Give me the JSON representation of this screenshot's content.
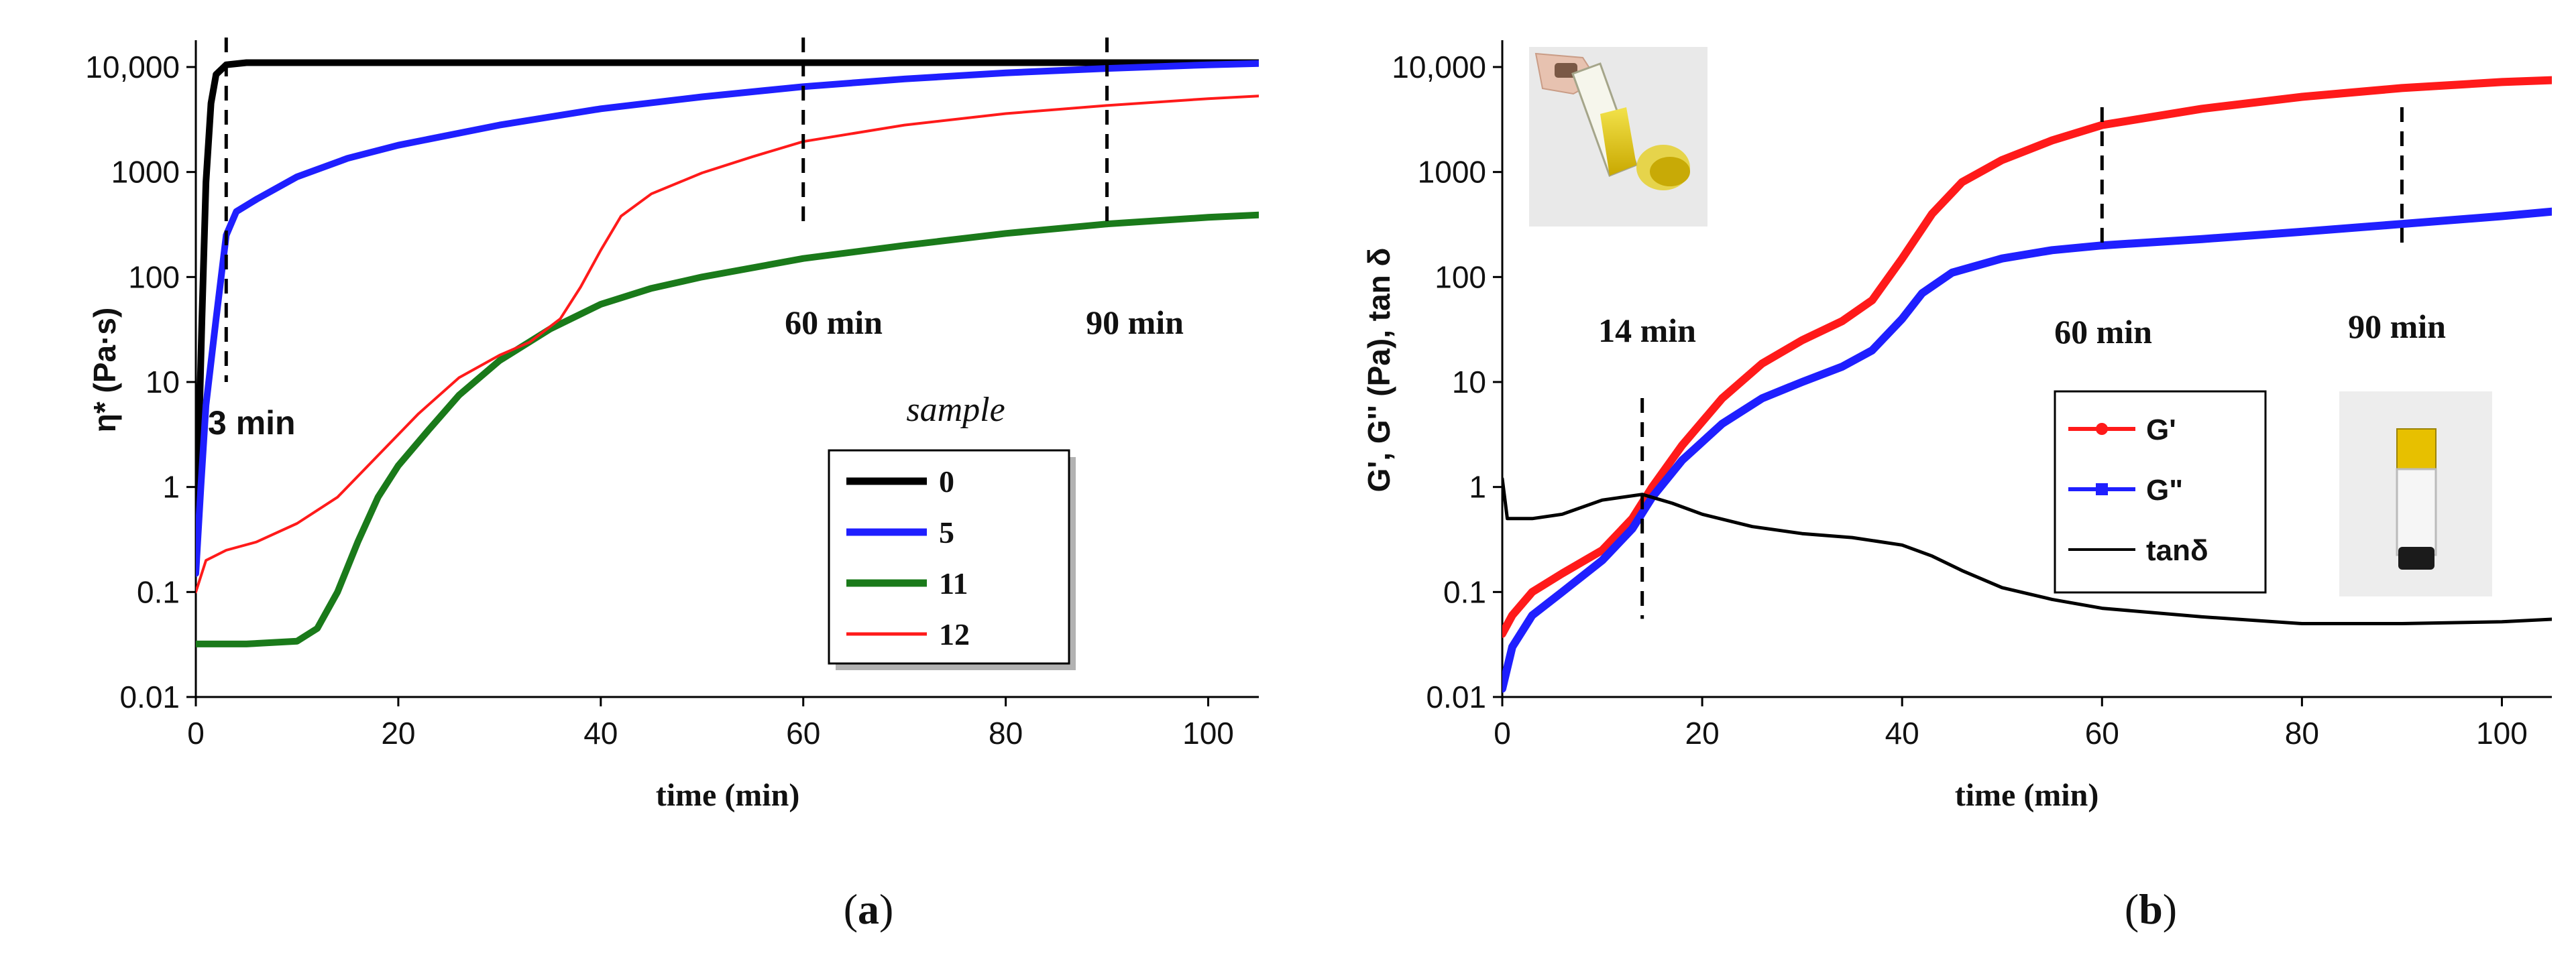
{
  "colors": {
    "black": "#000000",
    "blue": "#1f1fff",
    "green": "#1a7a1a",
    "red": "#ff1a1a"
  },
  "panel_labels": {
    "a_open": "(",
    "a_letter": "a",
    "a_close": ")",
    "b_open": "(",
    "b_letter": "b",
    "b_close": ")"
  },
  "images": {
    "inset_top": "photo of a glass vial with yellow liquid held in a hand",
    "inset_right": "photo of an upright glass vial with yellow cap and dark gel"
  },
  "chart_data": [
    {
      "id": "a",
      "type": "line",
      "xlabel": "time (min)",
      "ylabel": "η* (Pa·s)",
      "xlim": [
        0,
        105
      ],
      "ylim": [
        0.01,
        10000
      ],
      "yscale": "log",
      "x_ticks": [
        0,
        20,
        40,
        60,
        80,
        100
      ],
      "y_ticks": [
        0.01,
        0.1,
        1,
        10,
        100,
        1000,
        10000
      ],
      "y_tick_labels": [
        "0.01",
        "0.1",
        "1",
        "10",
        "100",
        "1000",
        "10,000"
      ],
      "x_tick_labels": [
        "0",
        "20",
        "40",
        "60",
        "80",
        "100"
      ],
      "legend_title": "sample",
      "vlines": [
        {
          "x": 3,
          "label": "3 min"
        },
        {
          "x": 60,
          "label": "60 min"
        },
        {
          "x": 90,
          "label": "90 min"
        }
      ],
      "series": [
        {
          "name": "0",
          "color": "#000000",
          "points": [
            [
              0,
              0.3
            ],
            [
              0.3,
              3
            ],
            [
              0.6,
              40
            ],
            [
              1,
              800
            ],
            [
              1.5,
              4500
            ],
            [
              2,
              8500
            ],
            [
              3,
              10500
            ],
            [
              5,
              11000
            ],
            [
              20,
              11000
            ],
            [
              50,
              11000
            ],
            [
              80,
              11000
            ],
            [
              105,
              11000
            ]
          ]
        },
        {
          "name": "5",
          "color": "#1f1fff",
          "points": [
            [
              0,
              0.15
            ],
            [
              0.5,
              1
            ],
            [
              1,
              6
            ],
            [
              2,
              40
            ],
            [
              3,
              250
            ],
            [
              4,
              420
            ],
            [
              6,
              550
            ],
            [
              10,
              900
            ],
            [
              15,
              1350
            ],
            [
              20,
              1800
            ],
            [
              30,
              2800
            ],
            [
              40,
              4000
            ],
            [
              50,
              5200
            ],
            [
              60,
              6500
            ],
            [
              70,
              7700
            ],
            [
              80,
              8800
            ],
            [
              90,
              9700
            ],
            [
              100,
              10500
            ],
            [
              105,
              10800
            ]
          ]
        },
        {
          "name": "11",
          "color": "#1a7a1a",
          "points": [
            [
              0,
              0.032
            ],
            [
              5,
              0.032
            ],
            [
              10,
              0.034
            ],
            [
              12,
              0.045
            ],
            [
              14,
              0.1
            ],
            [
              16,
              0.3
            ],
            [
              18,
              0.8
            ],
            [
              20,
              1.6
            ],
            [
              23,
              3.5
            ],
            [
              26,
              7.5
            ],
            [
              30,
              16
            ],
            [
              35,
              32
            ],
            [
              40,
              55
            ],
            [
              45,
              78
            ],
            [
              50,
              100
            ],
            [
              60,
              150
            ],
            [
              70,
              200
            ],
            [
              80,
              260
            ],
            [
              90,
              320
            ],
            [
              100,
              370
            ],
            [
              105,
              390
            ]
          ]
        },
        {
          "name": "12",
          "color": "#ff1a1a",
          "points": [
            [
              0,
              0.1
            ],
            [
              1,
              0.2
            ],
            [
              3,
              0.25
            ],
            [
              6,
              0.3
            ],
            [
              10,
              0.45
            ],
            [
              14,
              0.8
            ],
            [
              18,
              2
            ],
            [
              22,
              5
            ],
            [
              26,
              11
            ],
            [
              30,
              18
            ],
            [
              33,
              24
            ],
            [
              36,
              40
            ],
            [
              38,
              80
            ],
            [
              40,
              180
            ],
            [
              42,
              380
            ],
            [
              45,
              620
            ],
            [
              50,
              980
            ],
            [
              55,
              1400
            ],
            [
              60,
              1950
            ],
            [
              70,
              2800
            ],
            [
              80,
              3600
            ],
            [
              90,
              4300
            ],
            [
              100,
              5000
            ],
            [
              105,
              5300
            ]
          ]
        }
      ]
    },
    {
      "id": "b",
      "type": "line",
      "xlabel": "time (min)",
      "ylabel": "G', G'' (Pa), tan δ",
      "xlim": [
        0,
        105
      ],
      "ylim": [
        0.01,
        10000
      ],
      "yscale": "log",
      "x_ticks": [
        0,
        20,
        40,
        60,
        80,
        100
      ],
      "y_ticks": [
        0.01,
        0.1,
        1,
        10,
        100,
        1000,
        10000
      ],
      "y_tick_labels": [
        "0.01",
        "0.1",
        "1",
        "10",
        "100",
        "1000",
        "10,000"
      ],
      "x_tick_labels": [
        "0",
        "20",
        "40",
        "60",
        "80",
        "100"
      ],
      "vlines": [
        {
          "x": 14,
          "label": "14 min"
        },
        {
          "x": 60,
          "label": "60 min"
        },
        {
          "x": 90,
          "label": "90 min"
        }
      ],
      "series": [
        {
          "name": "G'",
          "color": "#ff1a1a",
          "points": [
            [
              0,
              0.04
            ],
            [
              1,
              0.06
            ],
            [
              3,
              0.1
            ],
            [
              6,
              0.15
            ],
            [
              10,
              0.25
            ],
            [
              13,
              0.5
            ],
            [
              15,
              1
            ],
            [
              18,
              2.5
            ],
            [
              22,
              7
            ],
            [
              26,
              15
            ],
            [
              30,
              25
            ],
            [
              34,
              38
            ],
            [
              37,
              60
            ],
            [
              40,
              150
            ],
            [
              43,
              400
            ],
            [
              46,
              800
            ],
            [
              50,
              1300
            ],
            [
              55,
              2000
            ],
            [
              60,
              2800
            ],
            [
              70,
              4000
            ],
            [
              80,
              5200
            ],
            [
              90,
              6300
            ],
            [
              100,
              7200
            ],
            [
              105,
              7500
            ]
          ]
        },
        {
          "name": "G\"",
          "color": "#1f1fff",
          "points": [
            [
              0,
              0.012
            ],
            [
              1,
              0.03
            ],
            [
              3,
              0.06
            ],
            [
              6,
              0.1
            ],
            [
              10,
              0.2
            ],
            [
              13,
              0.4
            ],
            [
              15,
              0.8
            ],
            [
              18,
              1.8
            ],
            [
              22,
              4
            ],
            [
              26,
              7
            ],
            [
              30,
              10
            ],
            [
              34,
              14
            ],
            [
              37,
              20
            ],
            [
              40,
              40
            ],
            [
              42,
              70
            ],
            [
              45,
              110
            ],
            [
              50,
              150
            ],
            [
              55,
              180
            ],
            [
              60,
              200
            ],
            [
              70,
              230
            ],
            [
              80,
              270
            ],
            [
              90,
              320
            ],
            [
              100,
              380
            ],
            [
              105,
              420
            ]
          ]
        },
        {
          "name": "tanδ",
          "color": "#000000",
          "points": [
            [
              0,
              1.2
            ],
            [
              0.5,
              0.5
            ],
            [
              3,
              0.5
            ],
            [
              6,
              0.55
            ],
            [
              10,
              0.75
            ],
            [
              14,
              0.85
            ],
            [
              17,
              0.7
            ],
            [
              20,
              0.55
            ],
            [
              25,
              0.42
            ],
            [
              30,
              0.36
            ],
            [
              35,
              0.33
            ],
            [
              40,
              0.28
            ],
            [
              43,
              0.22
            ],
            [
              46,
              0.16
            ],
            [
              50,
              0.11
            ],
            [
              55,
              0.085
            ],
            [
              60,
              0.07
            ],
            [
              70,
              0.058
            ],
            [
              80,
              0.05
            ],
            [
              90,
              0.05
            ],
            [
              100,
              0.052
            ],
            [
              105,
              0.055
            ]
          ]
        }
      ]
    }
  ]
}
